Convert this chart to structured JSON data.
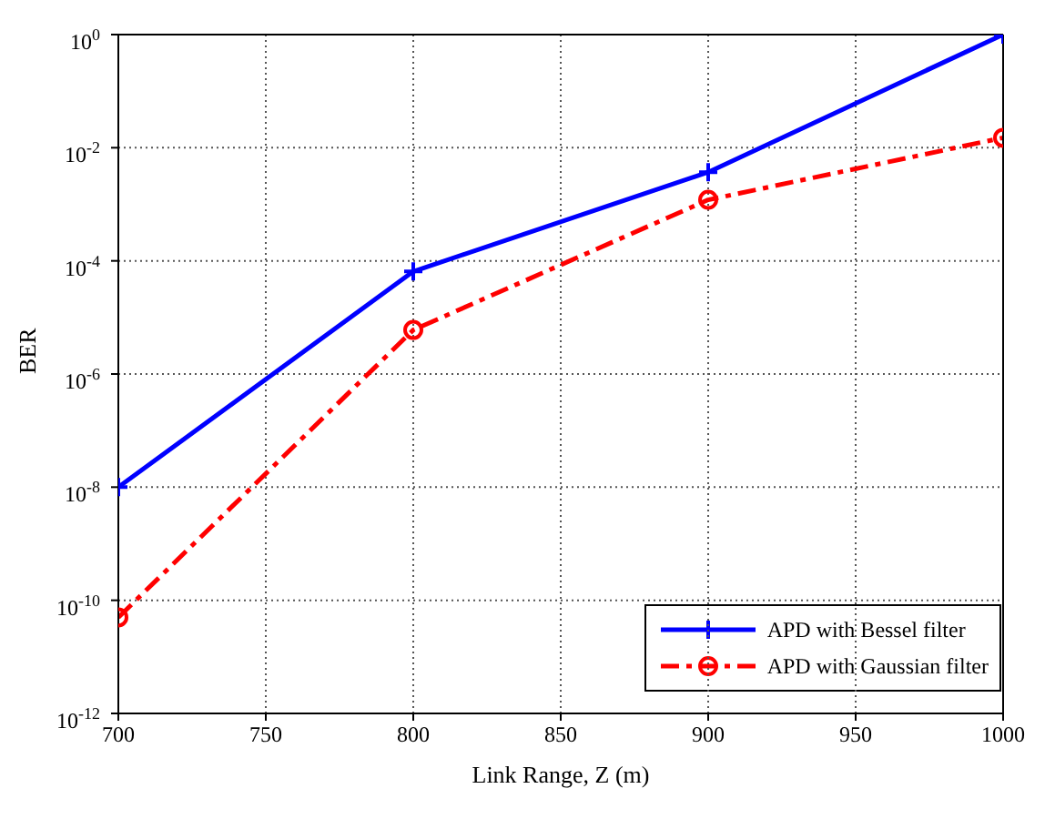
{
  "chart_data": {
    "type": "line",
    "xlabel": "Link Range, Z (m)",
    "ylabel": "BER",
    "x": [
      700,
      800,
      900,
      1000
    ],
    "series": [
      {
        "name": "APD with Bessel filter",
        "color": "#0000ff",
        "values": [
          1e-08,
          6.5e-05,
          0.0037,
          1
        ],
        "marker": "cross",
        "line_style": "solid"
      },
      {
        "name": "APD with Gaussian filter",
        "color": "#ff0000",
        "values": [
          5e-11,
          6e-06,
          0.0012,
          0.015
        ],
        "marker": "circle",
        "line_style": "dashed"
      }
    ],
    "log": "y",
    "xlim": [
      700,
      1000
    ],
    "xticks": [
      700,
      750,
      800,
      850,
      900,
      950,
      1000
    ],
    "ylim": [
      1e-12,
      1
    ],
    "yticks": [
      {
        "value": 1e-12,
        "label": "10$^{-12}$"
      },
      {
        "value": 1e-10,
        "label": "10$^{-10}$"
      },
      {
        "value": 1e-08,
        "label": "10$^{-8}$"
      },
      {
        "value": 1e-06,
        "label": "10$^{-6}$"
      },
      {
        "value": 0.0001,
        "label": "10$^{-4}$"
      },
      {
        "value": 0.01,
        "label": "10$^{-2}$"
      },
      {
        "value": 1,
        "label": "10$^{0}$"
      }
    ],
    "grid": true,
    "legend": "bottom right"
  }
}
